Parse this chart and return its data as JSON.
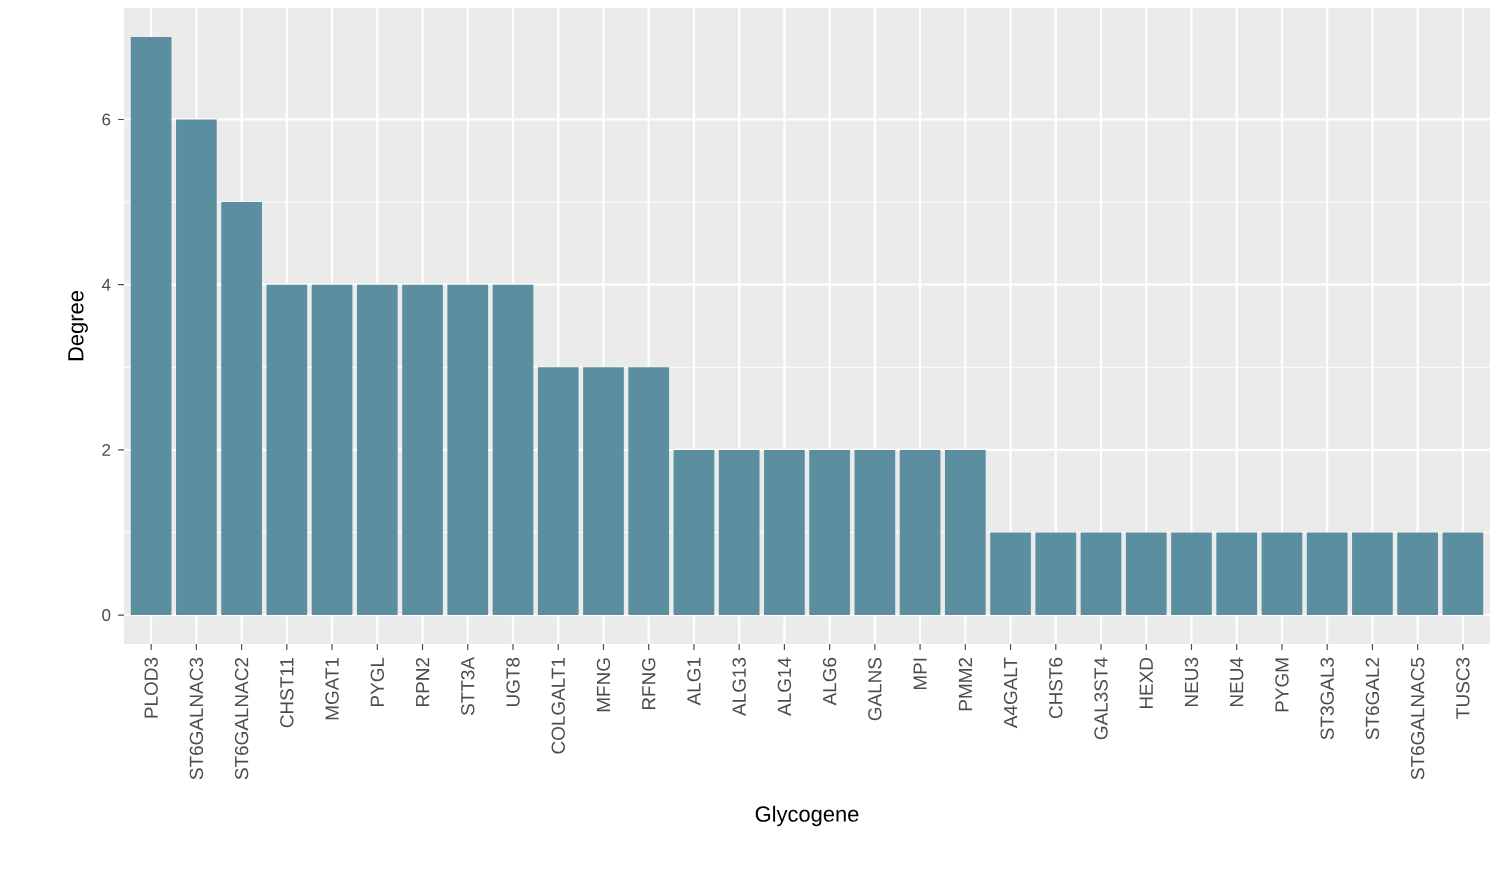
{
  "chart_data": {
    "type": "bar",
    "xlabel": "Glycogene",
    "ylabel": "Degree",
    "categories": [
      "PLOD3",
      "ST6GALNAC3",
      "ST6GALNAC2",
      "CHST11",
      "MGAT1",
      "PYGL",
      "RPN2",
      "STT3A",
      "UGT8",
      "COLGALT1",
      "MFNG",
      "RFNG",
      "ALG1",
      "ALG13",
      "ALG14",
      "ALG6",
      "GALNS",
      "MPI",
      "PMM2",
      "A4GALT",
      "CHST6",
      "GAL3ST4",
      "HEXD",
      "NEU3",
      "NEU4",
      "PYGM",
      "ST3GAL3",
      "ST6GAL2",
      "ST6GALNAC5",
      "TUSC3"
    ],
    "values": [
      7,
      6,
      5,
      4,
      4,
      4,
      4,
      4,
      4,
      3,
      3,
      3,
      2,
      2,
      2,
      2,
      2,
      2,
      2,
      1,
      1,
      1,
      1,
      1,
      1,
      1,
      1,
      1,
      1,
      1
    ],
    "color": "#5b8fa0",
    "ylim": [
      -0.35,
      7.35
    ],
    "yticks": [
      0,
      2,
      4,
      6
    ],
    "grid": true
  }
}
